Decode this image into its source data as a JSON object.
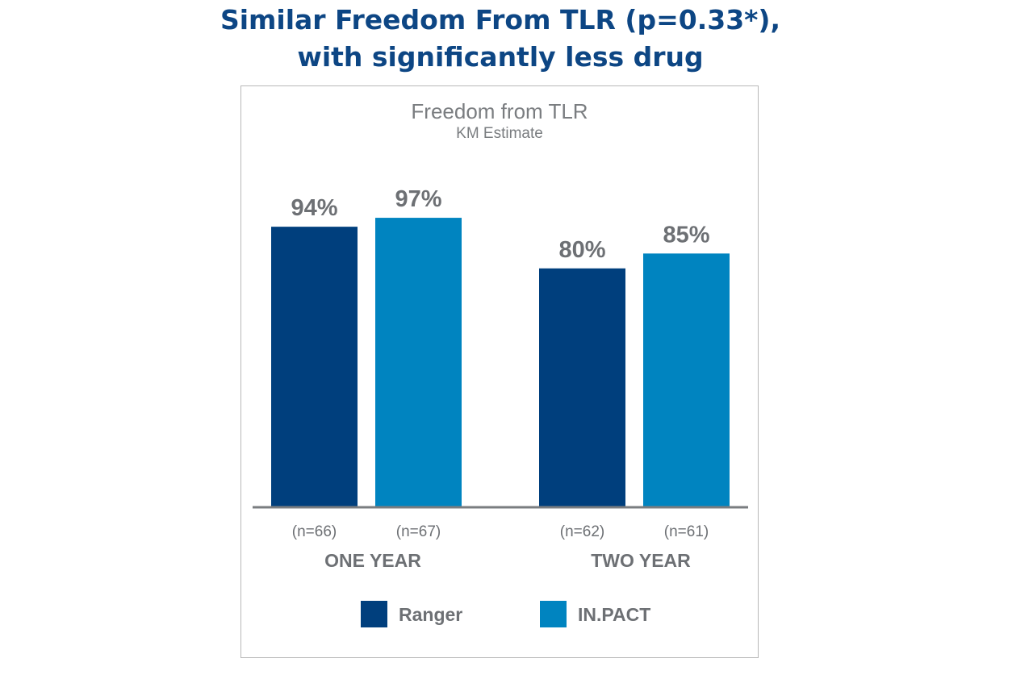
{
  "headline": {
    "line1": "Similar Freedom From TLR (p=0.33*),",
    "line2": "with significantly less drug"
  },
  "colors": {
    "ranger": "#003f7d",
    "inpact": "#0084c0",
    "label_gray": "#6d7074",
    "headline_blue": "#0d4684"
  },
  "chart_data": {
    "type": "bar",
    "title": "Freedom from TLR",
    "subtitle": "KM Estimate",
    "categories": [
      "ONE YEAR",
      "TWO YEAR"
    ],
    "ylim": [
      0,
      100
    ],
    "grid": false,
    "legend_position": "bottom",
    "series": [
      {
        "name": "Ranger",
        "values": [
          94,
          80
        ],
        "value_labels": [
          "94%",
          "80%"
        ],
        "n_labels": [
          "(n=66)",
          "(n=62)"
        ]
      },
      {
        "name": "IN.PACT",
        "values": [
          97,
          85
        ],
        "value_labels": [
          "97%",
          "85%"
        ],
        "n_labels": [
          "(n=67)",
          "(n=61)"
        ]
      }
    ]
  }
}
